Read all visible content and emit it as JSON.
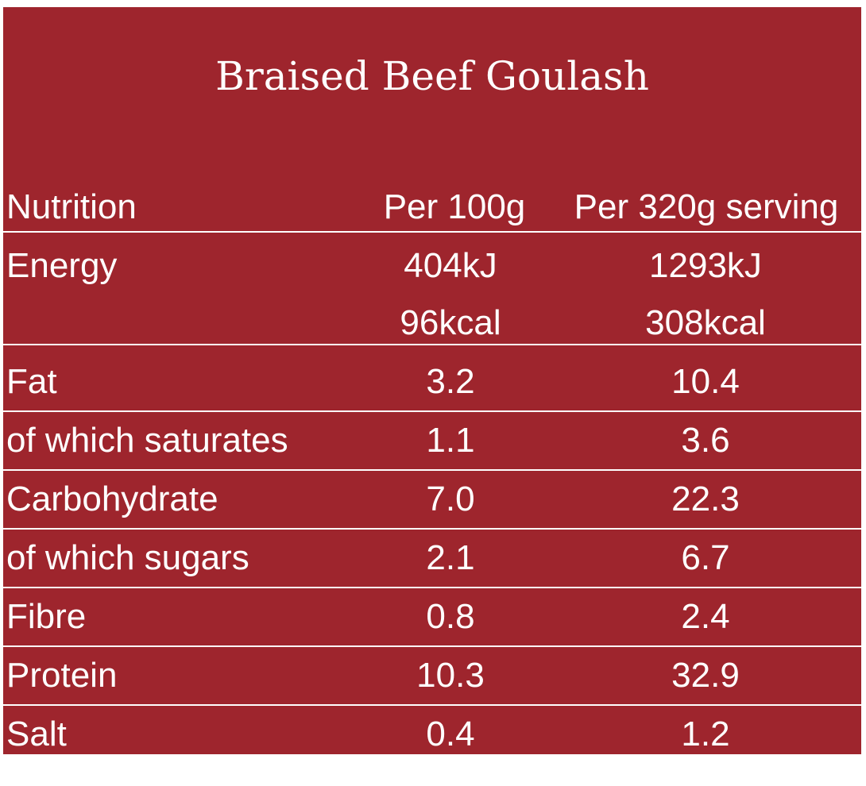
{
  "title": "Braised Beef Goulash",
  "header": {
    "nutrition": "Nutrition",
    "per_100g": "Per 100g",
    "per_serving": "Per 320g serving"
  },
  "energy": {
    "label": "Energy",
    "per_100g_kj": "404kJ",
    "per_100g_kcal": "96kcal",
    "per_serving_kj": "1293kJ",
    "per_serving_kcal": "308kcal"
  },
  "rows": [
    {
      "label": "Fat",
      "per_100g": "3.2",
      "per_serving": "10.4"
    },
    {
      "label": "of which saturates",
      "per_100g": "1.1",
      "per_serving": "3.6"
    },
    {
      "label": "Carbohydrate",
      "per_100g": "7.0",
      "per_serving": "22.3"
    },
    {
      "label": "of which sugars",
      "per_100g": "2.1",
      "per_serving": "6.7"
    },
    {
      "label": "Fibre",
      "per_100g": "0.8",
      "per_serving": "2.4"
    },
    {
      "label": "Protein",
      "per_100g": "10.3",
      "per_serving": "32.9"
    },
    {
      "label": "Salt",
      "per_100g": "0.4",
      "per_serving": "1.2"
    }
  ],
  "colors": {
    "panel_background": "#9e252d",
    "text": "#ffffff"
  }
}
